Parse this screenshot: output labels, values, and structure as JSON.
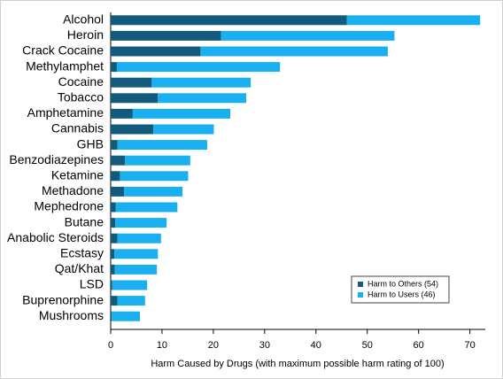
{
  "chart_data": {
    "type": "stacked-barh",
    "xlabel": "Harm Caused by Drugs (with maximum possible harm rating of 100)",
    "categories": [
      "Alcohol",
      "Heroin",
      "Crack Cocaine",
      "Methylamphet",
      "Cocaine",
      "Tobacco",
      "Amphetamine",
      "Cannabis",
      "GHB",
      "Benzodiazepines",
      "Ketamine",
      "Methadone",
      "Mephedrone",
      "Butane",
      "Anabolic Steroids",
      "Ecstasy",
      "Qat/Khat",
      "LSD",
      "Buprenorphine",
      "Mushrooms"
    ],
    "series": [
      {
        "name": "Harm to Others (54)",
        "color": "#135b7c",
        "values": [
          46,
          21.5,
          17.5,
          1.2,
          8,
          9.2,
          4.3,
          8.3,
          1.3,
          2.8,
          1.8,
          2.6,
          1,
          0.9,
          1.3,
          0.7,
          0.8,
          0.3,
          1.3,
          0.2
        ]
      },
      {
        "name": "Harm to Users (46)",
        "color": "#1ab0f0",
        "values": [
          26,
          33.8,
          36.5,
          31.8,
          19.3,
          17.2,
          19,
          11.8,
          17.5,
          12.7,
          13.3,
          11.4,
          12,
          10,
          8.5,
          8.5,
          8.2,
          6.8,
          5.4,
          5.5
        ]
      }
    ],
    "xlim": [
      0,
      73
    ],
    "xticks": [
      0,
      10,
      20,
      30,
      40,
      50,
      60,
      70
    ],
    "legend": "lower right"
  }
}
